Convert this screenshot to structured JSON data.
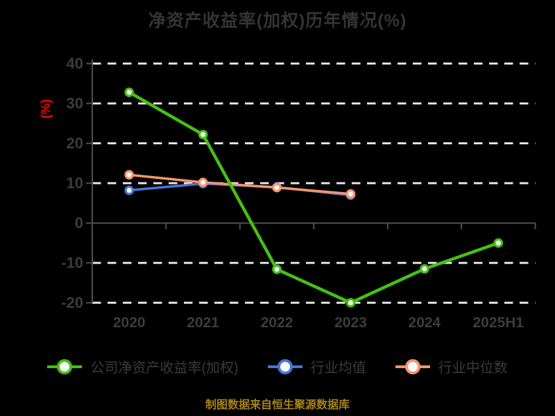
{
  "header": {
    "title": "净资产收益率(加权)历年情况(%)"
  },
  "source_note": "制图数据来自恒生聚源数据库",
  "colors": {
    "background": "#000000",
    "title_text": "#343434",
    "tick_label": "#3c3c3c",
    "axis_line": "#4f4f4f",
    "gridline": "#ebebeb",
    "y_axis_title": "#ff0000",
    "legend_text": "#3a3a3a",
    "source_note_text": "#a5831a",
    "marker_fill": "#ffffff"
  },
  "chart_data": {
    "type": "line",
    "title": "净资产收益率(加权)历年情况(%)",
    "xlabel": "",
    "ylabel": "(%)",
    "categories": [
      "2020",
      "2021",
      "2022",
      "2023",
      "2024",
      "2025H1"
    ],
    "series": [
      {
        "name": "公司净资产收益率(加权)",
        "color": "#45c112",
        "line_width": 4.5,
        "values": [
          32.8,
          22.2,
          -11.6,
          -20.0,
          -11.5,
          -5.0
        ]
      },
      {
        "name": "行业均值",
        "color": "#4677d8",
        "line_width": 3.5,
        "values": [
          8.2,
          9.9,
          9.0,
          7.0,
          null,
          null
        ]
      },
      {
        "name": "行业中位数",
        "color": "#f89569",
        "line_width": 3.5,
        "values": [
          12.1,
          10.2,
          8.9,
          7.3,
          null,
          null
        ]
      }
    ],
    "ylim": [
      -20,
      40
    ],
    "yticks": [
      40,
      30,
      20,
      10,
      0,
      -10,
      -20
    ],
    "grid": "horizontal-dashed",
    "zero_axis": "solid",
    "legend_position": "bottom"
  }
}
